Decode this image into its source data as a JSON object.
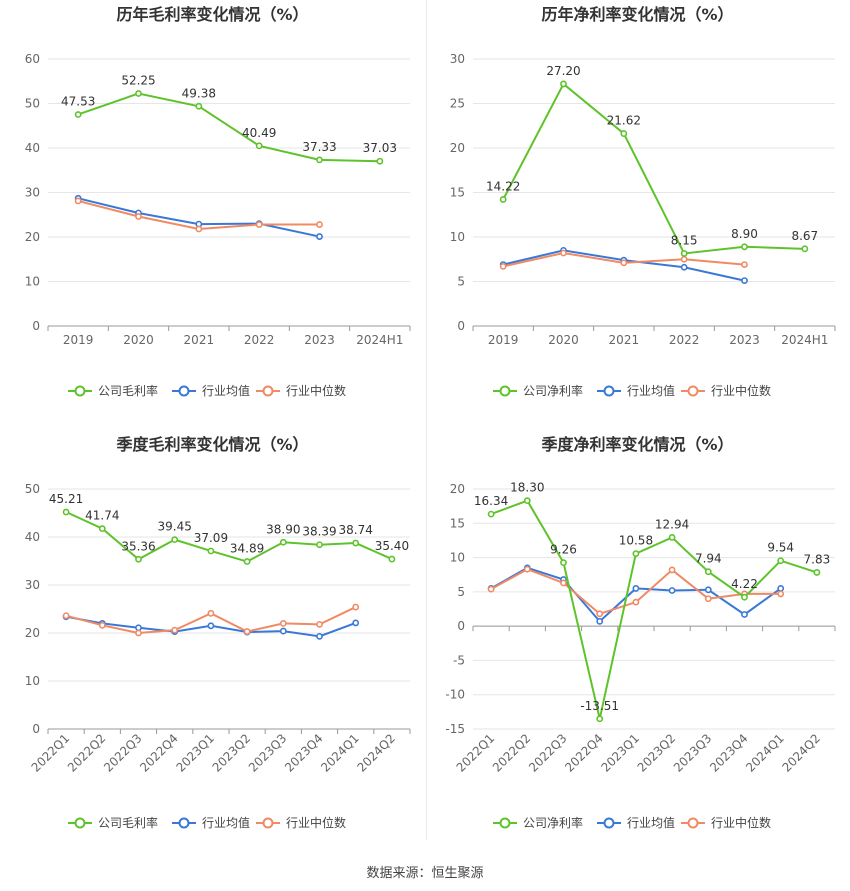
{
  "source": "数据来源：恒生聚源",
  "chart_data": [
    {
      "type": "line",
      "title": "历年毛利率变化情况（%）",
      "categories": [
        "2019",
        "2020",
        "2021",
        "2022",
        "2023",
        "2024H1"
      ],
      "ylim": [
        0,
        60
      ],
      "yticks": [
        0,
        10,
        20,
        30,
        40,
        50,
        60
      ],
      "grid": true,
      "legend_position": "bottom",
      "rotate_xlabels": false,
      "series": [
        {
          "name": "公司毛利率",
          "color": "#5ec32b",
          "values": [
            47.53,
            52.25,
            49.38,
            40.49,
            37.33,
            37.03
          ],
          "labels": true
        },
        {
          "name": "行业均值",
          "color": "#3a78d8",
          "values": [
            28.7,
            25.4,
            22.9,
            23.0,
            20.1,
            null
          ],
          "labels": false
        },
        {
          "name": "行业中位数",
          "color": "#f08a64",
          "values": [
            28.1,
            24.6,
            21.8,
            22.8,
            22.8,
            null
          ],
          "labels": false
        }
      ]
    },
    {
      "type": "line",
      "title": "历年净利率变化情况（%）",
      "categories": [
        "2019",
        "2020",
        "2021",
        "2022",
        "2023",
        "2024H1"
      ],
      "ylim": [
        0,
        30
      ],
      "yticks": [
        0,
        5,
        10,
        15,
        20,
        25,
        30
      ],
      "grid": true,
      "legend_position": "bottom",
      "rotate_xlabels": false,
      "series": [
        {
          "name": "公司净利率",
          "color": "#5ec32b",
          "values": [
            14.22,
            27.2,
            21.62,
            8.15,
            8.9,
            8.67
          ],
          "labels": true
        },
        {
          "name": "行业均值",
          "color": "#3a78d8",
          "values": [
            6.9,
            8.5,
            7.4,
            6.6,
            5.1,
            null
          ],
          "labels": false
        },
        {
          "name": "行业中位数",
          "color": "#f08a64",
          "values": [
            6.7,
            8.2,
            7.1,
            7.5,
            6.9,
            null
          ],
          "labels": false
        }
      ]
    },
    {
      "type": "line",
      "title": "季度毛利率变化情况（%）",
      "categories": [
        "2022Q1",
        "2022Q2",
        "2022Q3",
        "2022Q4",
        "2023Q1",
        "2023Q2",
        "2023Q3",
        "2023Q4",
        "2024Q1",
        "2024Q2"
      ],
      "ylim": [
        0,
        50
      ],
      "yticks": [
        0,
        10,
        20,
        30,
        40,
        50
      ],
      "grid": true,
      "legend_position": "bottom",
      "rotate_xlabels": true,
      "series": [
        {
          "name": "公司毛利率",
          "color": "#5ec32b",
          "values": [
            45.21,
            41.74,
            35.36,
            39.45,
            37.09,
            34.89,
            38.9,
            38.39,
            38.74,
            35.4
          ],
          "labels": true
        },
        {
          "name": "行业均值",
          "color": "#3a78d8",
          "values": [
            23.4,
            22.0,
            21.1,
            20.3,
            21.5,
            20.2,
            20.4,
            19.3,
            22.1,
            null
          ],
          "labels": false
        },
        {
          "name": "行业中位数",
          "color": "#f08a64",
          "values": [
            23.6,
            21.6,
            20.0,
            20.6,
            24.1,
            20.3,
            22.0,
            21.8,
            25.4,
            null
          ],
          "labels": false
        }
      ]
    },
    {
      "type": "line",
      "title": "季度净利率变化情况（%）",
      "categories": [
        "2022Q1",
        "2022Q2",
        "2022Q3",
        "2022Q4",
        "2023Q1",
        "2023Q2",
        "2023Q3",
        "2023Q4",
        "2024Q1",
        "2024Q2"
      ],
      "ylim": [
        -15,
        20
      ],
      "yticks": [
        -15,
        -10,
        -5,
        0,
        5,
        10,
        15,
        20
      ],
      "grid": true,
      "legend_position": "bottom",
      "rotate_xlabels": true,
      "series": [
        {
          "name": "公司净利率",
          "color": "#5ec32b",
          "values": [
            16.34,
            18.3,
            9.26,
            -13.51,
            10.58,
            12.94,
            7.94,
            4.22,
            9.54,
            7.83
          ],
          "labels": true
        },
        {
          "name": "行业均值",
          "color": "#3a78d8",
          "values": [
            5.5,
            8.5,
            6.8,
            0.7,
            5.5,
            5.2,
            5.3,
            1.7,
            5.5,
            null
          ],
          "labels": false
        },
        {
          "name": "行业中位数",
          "color": "#f08a64",
          "values": [
            5.4,
            8.3,
            6.3,
            1.8,
            3.5,
            8.2,
            4.0,
            4.7,
            4.7,
            null
          ],
          "labels": false
        }
      ]
    }
  ]
}
